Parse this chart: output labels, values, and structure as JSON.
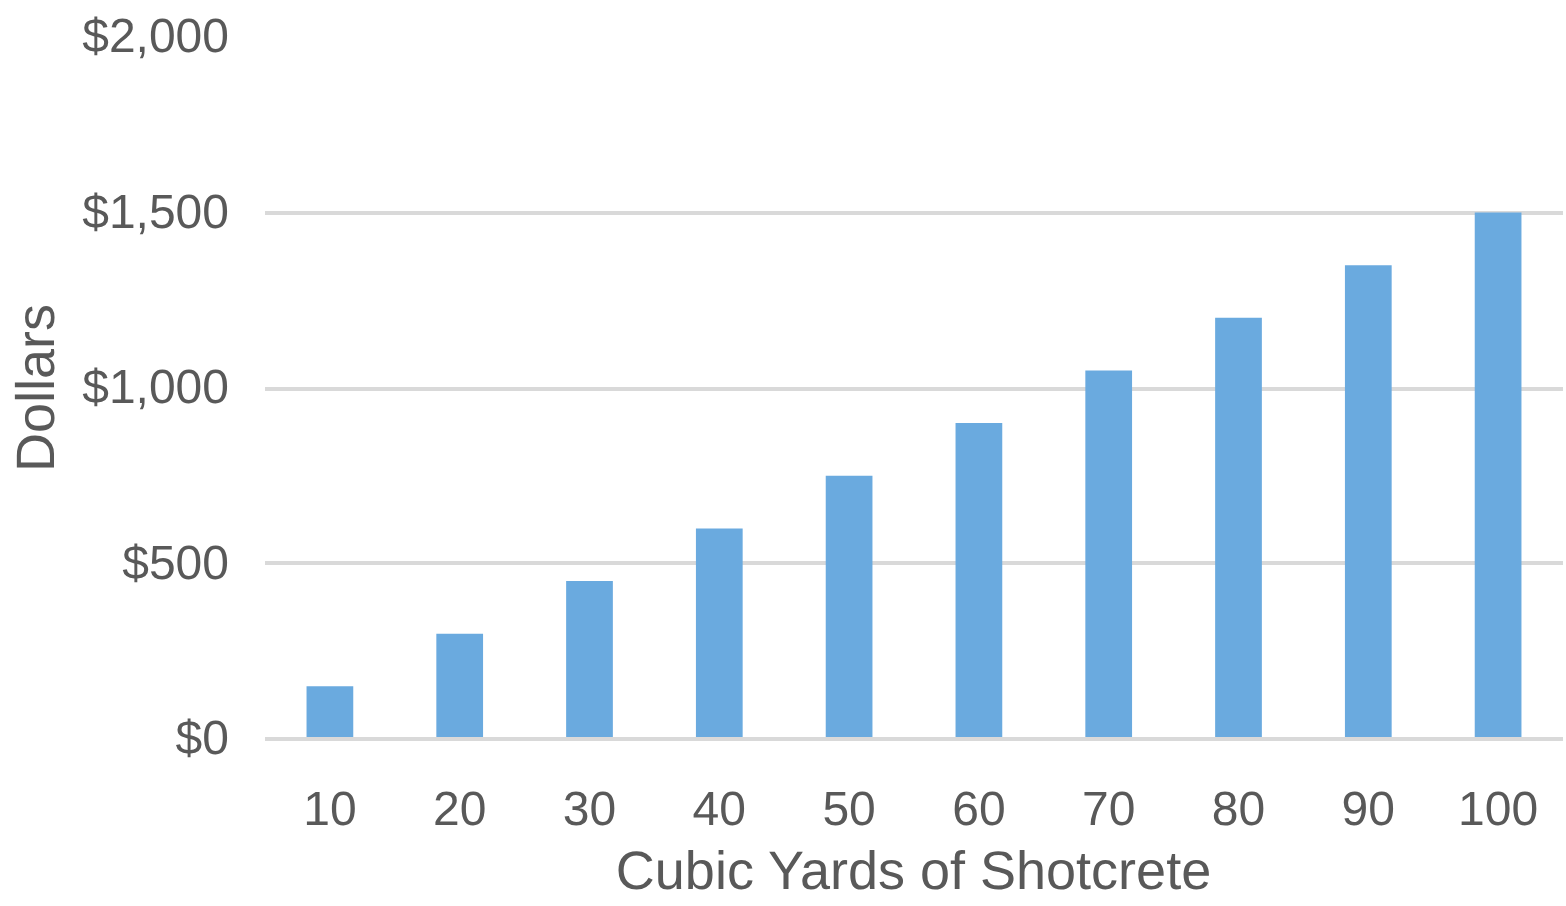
{
  "chart_data": {
    "type": "bar",
    "xlabel": "Cubic Yards of Shotcrete",
    "ylabel": "Dollars",
    "categories": [
      "10",
      "20",
      "30",
      "40",
      "50",
      "60",
      "70",
      "80",
      "90",
      "100"
    ],
    "values": [
      150,
      300,
      450,
      600,
      750,
      900,
      1050,
      1200,
      1350,
      1500
    ],
    "color": "#6aaadf",
    "ylim": [
      0,
      2000
    ],
    "yticks": [
      {
        "value": 0,
        "label": "$0"
      },
      {
        "value": 500,
        "label": "$500"
      },
      {
        "value": 1000,
        "label": "$1,000"
      },
      {
        "value": 1500,
        "label": "$1,500"
      },
      {
        "value": 2000,
        "label": "$2,000"
      }
    ],
    "grid": "y"
  }
}
